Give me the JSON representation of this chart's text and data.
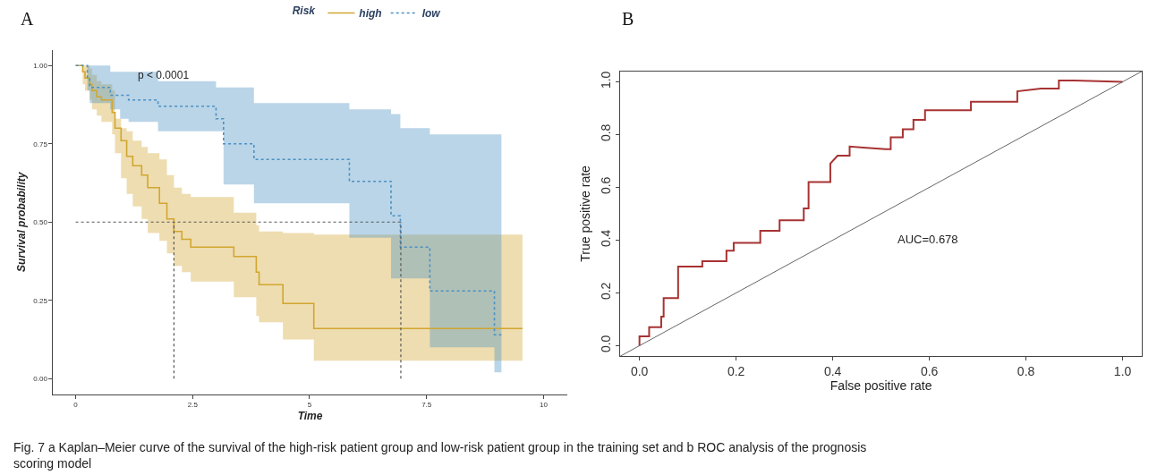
{
  "chart_data": [
    {
      "type": "step",
      "title": "A",
      "xlabel": "Time",
      "ylabel": "Survival probability",
      "legend_title": "Risk",
      "legend": "top",
      "xlim": [
        -0.48,
        10.5
      ],
      "ylim": [
        -0.05,
        1.05
      ],
      "xticks": [
        0,
        2.5,
        5,
        7.5,
        10
      ],
      "yticks": [
        {
          "value": 0,
          "label": "0.00"
        },
        {
          "value": 0.25,
          "label": "0.25"
        },
        {
          "value": 0.5,
          "label": "0.50"
        },
        {
          "value": 0.75,
          "label": "0.75"
        },
        {
          "value": 1,
          "label": "1.00"
        }
      ],
      "annotations": [
        "p < 0.0001",
        "Fig. 7 a Kaplan–Meier curve of the survival of the high-risk patient group and low-risk patient group in the training set and b ROC analysis of the prognosis scoring model"
      ],
      "ref_lines": [
        {
          "axis": "y",
          "value": 0.5,
          "color": "#555555",
          "line_style": "dotted"
        },
        {
          "axis": "x",
          "value": 2.1,
          "color": "#555555",
          "line_style": "dotted"
        },
        {
          "axis": "x",
          "value": 6.95,
          "color": "#555555",
          "line_style": "dotted"
        }
      ],
      "series": [
        {
          "name": "high",
          "color": "#d1a630",
          "line_style": "solid",
          "x": [
            0,
            0.15,
            0.2,
            0.3,
            0.35,
            0.45,
            0.55,
            0.78,
            0.84,
            0.97,
            1.09,
            1.22,
            1.41,
            1.54,
            1.79,
            1.95,
            2.1,
            2.27,
            2.46,
            3.38,
            3.86,
            3.92,
            4.43,
            5.09,
            9.55
          ],
          "values": [
            1.0,
            0.98,
            0.96,
            0.94,
            0.92,
            0.9,
            0.89,
            0.85,
            0.8,
            0.76,
            0.71,
            0.68,
            0.65,
            0.61,
            0.56,
            0.51,
            0.47,
            0.445,
            0.42,
            0.39,
            0.34,
            0.3,
            0.24,
            0.16,
            0.16
          ],
          "upper": [
            1.0,
            1.0,
            1.0,
            0.99,
            0.97,
            0.95,
            0.94,
            0.92,
            0.83,
            0.8,
            0.79,
            0.76,
            0.74,
            0.72,
            0.7,
            0.65,
            0.61,
            0.59,
            0.58,
            0.53,
            0.49,
            0.47,
            0.465,
            0.46,
            0.46
          ],
          "lower": [
            1.0,
            0.94,
            0.92,
            0.89,
            0.86,
            0.84,
            0.82,
            0.78,
            0.72,
            0.64,
            0.59,
            0.55,
            0.51,
            0.465,
            0.44,
            0.4,
            0.36,
            0.34,
            0.31,
            0.26,
            0.2,
            0.18,
            0.125,
            0.057,
            0.057
          ]
        },
        {
          "name": "low",
          "color": "#4a90c2",
          "line_style": "dotted",
          "x": [
            0,
            0.25,
            0.3,
            0.74,
            0.95,
            1.13,
            1.76,
            3.0,
            3.16,
            3.81,
            5.85,
            6.74,
            6.94,
            7.57,
            8.95,
            9.1
          ],
          "values": [
            1.0,
            0.96,
            0.93,
            0.905,
            0.905,
            0.89,
            0.87,
            0.83,
            0.75,
            0.7,
            0.63,
            0.52,
            0.42,
            0.28,
            0.14,
            0.14
          ],
          "upper": [
            1.0,
            1.0,
            1.0,
            0.98,
            0.98,
            0.98,
            0.95,
            0.93,
            0.93,
            0.88,
            0.86,
            0.845,
            0.8,
            0.78,
            0.78,
            0.78
          ],
          "lower": [
            1.0,
            0.92,
            0.88,
            0.86,
            0.83,
            0.82,
            0.79,
            0.79,
            0.62,
            0.56,
            0.45,
            0.32,
            0.32,
            0.1,
            0.02,
            0.02
          ]
        }
      ]
    },
    {
      "type": "line",
      "title": "B",
      "xlabel": "False positive rate",
      "ylabel": "True positive rate",
      "xlim": [
        -0.04,
        1.04
      ],
      "ylim": [
        -0.04,
        1.04
      ],
      "xticks": [
        {
          "value": 0,
          "label": "0.0"
        },
        {
          "value": 0.2,
          "label": "0.2"
        },
        {
          "value": 0.4,
          "label": "0.4"
        },
        {
          "value": 0.6,
          "label": "0.6"
        },
        {
          "value": 0.8,
          "label": "0.8"
        },
        {
          "value": 1,
          "label": "1.0"
        }
      ],
      "yticks": [
        {
          "value": 0,
          "label": "0.0"
        },
        {
          "value": 0.2,
          "label": "0.2"
        },
        {
          "value": 0.4,
          "label": "0.4"
        },
        {
          "value": 0.6,
          "label": "0.6"
        },
        {
          "value": 0.8,
          "label": "0.8"
        },
        {
          "value": 1,
          "label": "1.0"
        }
      ],
      "annotations": [
        "AUC=0.678"
      ],
      "series": [
        {
          "color": "#a83232",
          "line_style": "solid",
          "x": [
            0,
            0,
            0.02,
            0.02,
            0.045,
            0.045,
            0.05,
            0.05,
            0.08,
            0.08,
            0.13,
            0.13,
            0.18,
            0.18,
            0.195,
            0.195,
            0.25,
            0.25,
            0.29,
            0.29,
            0.34,
            0.34,
            0.35,
            0.35,
            0.395,
            0.395,
            0.41,
            0.435,
            0.435,
            0.47,
            0.51,
            0.52,
            0.52,
            0.545,
            0.545,
            0.567,
            0.567,
            0.591,
            0.591,
            0.686,
            0.686,
            0.782,
            0.782,
            0.831,
            0.868,
            0.868,
            0.9,
            1.0
          ],
          "values": [
            0,
            0.035,
            0.035,
            0.07,
            0.07,
            0.11,
            0.11,
            0.18,
            0.18,
            0.3,
            0.3,
            0.32,
            0.32,
            0.36,
            0.36,
            0.39,
            0.39,
            0.435,
            0.435,
            0.475,
            0.475,
            0.52,
            0.52,
            0.62,
            0.62,
            0.69,
            0.72,
            0.72,
            0.755,
            0.75,
            0.745,
            0.745,
            0.79,
            0.79,
            0.82,
            0.82,
            0.856,
            0.856,
            0.892,
            0.892,
            0.924,
            0.924,
            0.964,
            0.974,
            0.974,
            1.005,
            1.005,
            1.0
          ]
        },
        {
          "color": "#666666",
          "line_style": "solid",
          "x": [
            -0.04,
            1.04
          ],
          "values": [
            -0.04,
            1.04
          ]
        }
      ]
    }
  ]
}
